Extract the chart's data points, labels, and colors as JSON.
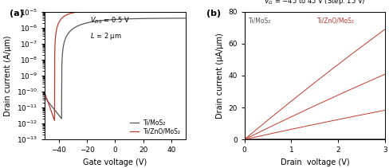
{
  "panel_a": {
    "label": "(a)",
    "xlabel": "Gate voltage (V)",
    "ylabel": "Drain current (A/μm)",
    "xlim": [
      -50,
      50
    ],
    "ylim_log": [
      -13,
      -5
    ],
    "xticks": [
      -40,
      -20,
      0,
      20,
      40
    ],
    "legend": [
      "Ti/MoS₂",
      "Ti/ZnO/MoS₂"
    ],
    "color_mos2": "#555555",
    "color_zno": "#c0392b",
    "vth_mos2": -38,
    "vth_zno": -43,
    "ion_mos2": 4e-06,
    "ion_zno": 1.2e-05,
    "ss_mos2": 18,
    "ss_zno": 8,
    "imin_mos2": 2e-12,
    "imin_zno": 1.5e-12
  },
  "panel_b": {
    "label": "(b)",
    "xlabel": "Drain  voltage (V)",
    "ylabel": "Drain current (μA/μm)",
    "xlim": [
      0,
      3
    ],
    "ylim": [
      0,
      80
    ],
    "yticks": [
      0,
      20,
      40,
      60,
      80
    ],
    "xticks": [
      0,
      1,
      2,
      3
    ],
    "vg_steps": [
      -45,
      -30,
      -15,
      0,
      15,
      30,
      45
    ],
    "legend_mos2": "Ti/MoS₂",
    "legend_zno": "Ti/ZnO/MoS₂",
    "color_mos2": "#555555",
    "color_zno": "#c0392b",
    "mos2_slopes": [
      0,
      0,
      0,
      0,
      0.03,
      0.18,
      0.45
    ],
    "zno_slopes": [
      0,
      0,
      0,
      0,
      6.5,
      14.5,
      24.5
    ]
  },
  "bg_color": "white"
}
